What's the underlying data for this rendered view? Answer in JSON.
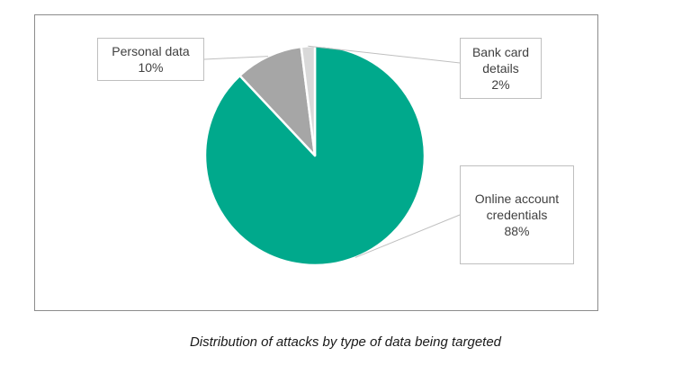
{
  "chart_data": {
    "type": "pie",
    "caption": "Distribution of attacks by type of data being targeted",
    "slices": [
      {
        "label_lines": [
          "Online account",
          "credentials"
        ],
        "value": 88,
        "display": "88%",
        "color": "#00a98c"
      },
      {
        "label_lines": [
          "Personal data"
        ],
        "value": 10,
        "display": "10%",
        "color": "#a6a6a6"
      },
      {
        "label_lines": [
          "Bank card",
          "details"
        ],
        "value": 2,
        "display": "2%",
        "color": "#d9d9d9"
      }
    ]
  }
}
